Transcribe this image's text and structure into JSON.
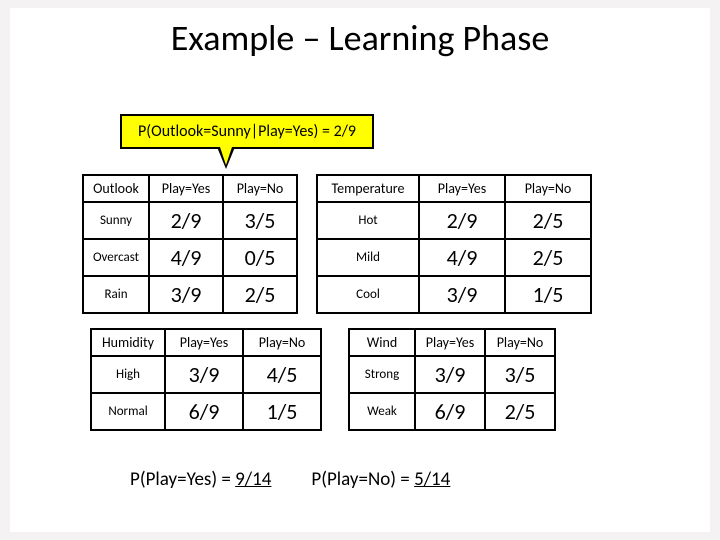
{
  "title": "Example – Learning Phase",
  "callout": "P(Outlook=Sunny|Play=Yes) = 2/9",
  "headers": {
    "play_yes": "Play=Yes",
    "play_no": "Play=No"
  },
  "outlook": {
    "header": "Outlook",
    "rows": {
      "sunny": {
        "label": "Sunny",
        "yes": "2/9",
        "no": "3/5"
      },
      "overcast": {
        "label": "Overcast",
        "yes": "4/9",
        "no": "0/5"
      },
      "rain": {
        "label": "Rain",
        "yes": "3/9",
        "no": "2/5"
      }
    }
  },
  "temperature": {
    "header": "Temperature",
    "rows": {
      "hot": {
        "label": "Hot",
        "yes": "2/9",
        "no": "2/5"
      },
      "mild": {
        "label": "Mild",
        "yes": "4/9",
        "no": "2/5"
      },
      "cool": {
        "label": "Cool",
        "yes": "3/9",
        "no": "1/5"
      }
    }
  },
  "humidity": {
    "header": "Humidity",
    "rows": {
      "high": {
        "label": "High",
        "yes": "3/9",
        "no": "4/5"
      },
      "normal": {
        "label": "Normal",
        "yes": "6/9",
        "no": "1/5"
      }
    }
  },
  "wind": {
    "header": "Wind",
    "rows": {
      "strong": {
        "label": "Strong",
        "yes": "3/9",
        "no": "3/5"
      },
      "weak": {
        "label": "Weak",
        "yes": "6/9",
        "no": "2/5"
      }
    }
  },
  "priors": {
    "yes_label": "P(Play=Yes) = ",
    "yes_val": "9/14",
    "no_label": "P(Play=No) = ",
    "no_val": "5/14"
  },
  "style": {
    "background": "#f4f2f3",
    "slide_bg": "#ffffff",
    "callout_bg": "#ffff00",
    "border_color": "#000000",
    "title_fontsize": 36,
    "cell_fontsize": 22,
    "header_fontsize": 14,
    "rowlabel_fontsize": 13,
    "prior_fontsize": 19
  }
}
